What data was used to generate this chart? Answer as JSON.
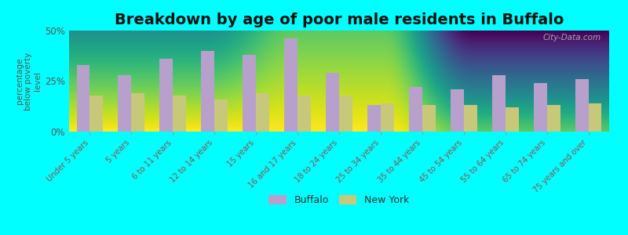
{
  "title": "Breakdown by age of poor male residents in Buffalo",
  "ylabel": "percentage\nbelow poverty\nlevel",
  "categories": [
    "Under 5 years",
    "5 years",
    "6 to 11 years",
    "12 to 14 years",
    "15 years",
    "16 and 17 years",
    "18 to 24 years",
    "25 to 34 years",
    "35 to 44 years",
    "45 to 54 years",
    "55 to 64 years",
    "65 to 74 years",
    "75 years and over"
  ],
  "buffalo": [
    33,
    28,
    36,
    40,
    38,
    46,
    29,
    13,
    22,
    21,
    28,
    24,
    26
  ],
  "new_york": [
    18,
    19,
    18,
    16,
    19,
    18,
    18,
    14,
    13,
    13,
    12,
    13,
    14
  ],
  "buffalo_color": "#b8a0cc",
  "new_york_color": "#c8c87a",
  "background_color": "#00ffff",
  "plot_bg_top": "#e8f0d8",
  "plot_bg_bottom": "#f5f5ee",
  "ylim": [
    0,
    50
  ],
  "yticks": [
    0,
    25,
    50
  ],
  "ytick_labels": [
    "0%",
    "25%",
    "50%"
  ],
  "bar_width": 0.32,
  "title_fontsize": 14,
  "legend_labels": [
    "Buffalo",
    "New York"
  ],
  "watermark": "City-Data.com",
  "xtick_color": "#885555",
  "ytick_color": "#555555"
}
